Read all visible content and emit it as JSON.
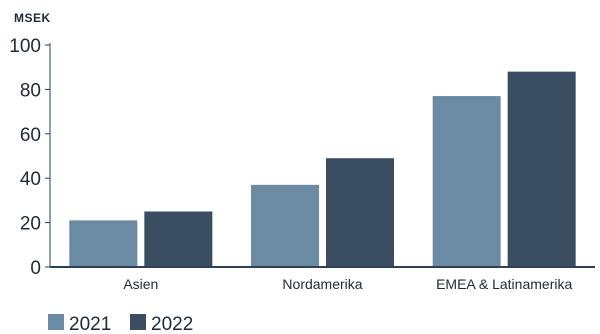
{
  "chart_data": {
    "type": "bar",
    "unit_label": "MSEK",
    "categories": [
      "Asien",
      "Nordamerika",
      "EMEA & Latinamerika"
    ],
    "series": [
      {
        "name": "2021",
        "values": [
          21,
          37,
          77
        ],
        "color": "#6b8aa3"
      },
      {
        "name": "2022",
        "values": [
          25,
          49,
          88
        ],
        "color": "#3a4d61"
      }
    ],
    "ylim": [
      0,
      100
    ],
    "yticks": [
      0,
      20,
      40,
      60,
      80,
      100
    ],
    "grid": false,
    "legend": "bottom-left",
    "colors": {
      "axis": "#2f4156",
      "text": "#1e2a38"
    }
  }
}
